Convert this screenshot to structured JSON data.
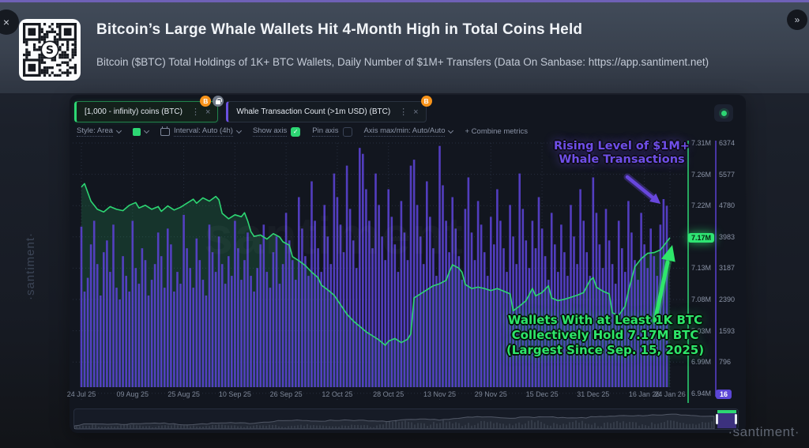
{
  "window": {
    "close_icon": "×",
    "expand_icon": "»"
  },
  "icons": {
    "kebab": "⋮",
    "close": "×",
    "check": "✓",
    "btc": "B"
  },
  "header": {
    "title": "Bitcoin’s Large Whale Wallets Hit 4-Month High in Total Coins Held",
    "subtitle": "Bitcoin ($BTC) Total Holdings of 1K+ BTC Wallets, Daily Number of $1M+ Transfers (Data On Sanbase: https://app.santiment.net)"
  },
  "toolbar": {
    "metric_tabs": [
      {
        "label": "[1,000 - infinity) coins (BTC)",
        "accent": "#2dd673",
        "badges": [
          "btc",
          "lock"
        ]
      },
      {
        "label": "Whale Transaction Count (>1m USD) (BTC)",
        "accent": "#6a50e0",
        "badges": [
          "btc"
        ]
      }
    ],
    "controls": {
      "style_label": "Style: Area",
      "interval_label": "Interval: Auto (4h)",
      "show_axis_label": "Show axis",
      "show_axis_checked": true,
      "pin_axis_label": "Pin axis",
      "pin_axis_checked": false,
      "axis_maxmin_label": "Axis max/min: Auto/Auto",
      "combine_metrics_label": "+ Combine metrics"
    }
  },
  "annotations": {
    "purple": {
      "color": "#6f4fe8",
      "lines": [
        "Rising Level of $1M+",
        "Whale Transactions"
      ]
    },
    "green": {
      "color": "#2ee76a",
      "lines": [
        "Wallets With at Least 1K BTC",
        "Collectively Hold 7.17M BTC",
        "(Largest Since Sep. 15, 2025)"
      ]
    }
  },
  "watermarks": {
    "left": "·santiment·",
    "center": "santiment",
    "bottom_right": "·santiment·"
  },
  "chart_data": {
    "type": "mixed",
    "grid": true,
    "legend_position": "top",
    "x_axis": {
      "days_total": 184,
      "labels": [
        {
          "label": "24 Jul 25",
          "day": 0
        },
        {
          "label": "09 Aug 25",
          "day": 16
        },
        {
          "label": "25 Aug 25",
          "day": 32
        },
        {
          "label": "10 Sep 25",
          "day": 48
        },
        {
          "label": "26 Sep 25",
          "day": 64
        },
        {
          "label": "12 Oct 25",
          "day": 80
        },
        {
          "label": "28 Oct 25",
          "day": 96
        },
        {
          "label": "13 Nov 25",
          "day": 112
        },
        {
          "label": "29 Nov 25",
          "day": 128
        },
        {
          "label": "15 Dec 25",
          "day": 144
        },
        {
          "label": "31 Dec 25",
          "day": 160
        },
        {
          "label": "16 Jan 26",
          "day": 176
        },
        {
          "label": "24 Jan 26",
          "day": 184
        }
      ]
    },
    "series": [
      {
        "name": "[1,000 - infinity) coins (BTC)",
        "type": "area",
        "unit": "M BTC",
        "color": "#2dd673",
        "fill": "rgba(45,214,115,0.16)",
        "axis_range": [
          6.94,
          7.31
        ],
        "axis_ticks": [
          "7.31M",
          "7.26M",
          "7.22M",
          "7.17M",
          "7.13M",
          "7.08M",
          "7.03M",
          "6.99M",
          "6.94M"
        ],
        "highlight_value": "7.17M",
        "highlight_tick_index": 3,
        "points": [
          [
            0,
            7.245
          ],
          [
            1,
            7.25
          ],
          [
            3,
            7.224
          ],
          [
            5,
            7.212
          ],
          [
            7,
            7.208
          ],
          [
            9,
            7.216
          ],
          [
            11,
            7.212
          ],
          [
            13,
            7.21
          ],
          [
            15,
            7.218
          ],
          [
            17,
            7.222
          ],
          [
            18,
            7.214
          ],
          [
            20,
            7.218
          ],
          [
            22,
            7.212
          ],
          [
            24,
            7.216
          ],
          [
            25,
            7.209
          ],
          [
            27,
            7.217
          ],
          [
            29,
            7.211
          ],
          [
            31,
            7.215
          ],
          [
            33,
            7.221
          ],
          [
            35,
            7.227
          ],
          [
            36,
            7.221
          ],
          [
            38,
            7.229
          ],
          [
            40,
            7.224
          ],
          [
            42,
            7.231
          ],
          [
            43,
            7.226
          ],
          [
            44,
            7.206
          ],
          [
            46,
            7.198
          ],
          [
            48,
            7.204
          ],
          [
            50,
            7.201
          ],
          [
            51,
            7.207
          ],
          [
            52,
            7.195
          ],
          [
            53,
            7.179
          ],
          [
            54,
            7.172
          ],
          [
            56,
            7.174
          ],
          [
            58,
            7.168
          ],
          [
            60,
            7.176
          ],
          [
            62,
            7.171
          ],
          [
            63,
            7.164
          ],
          [
            65,
            7.159
          ],
          [
            66,
            7.142
          ],
          [
            68,
            7.136
          ],
          [
            70,
            7.129
          ],
          [
            72,
            7.119
          ],
          [
            74,
            7.111
          ],
          [
            75,
            7.1
          ],
          [
            77,
            7.093
          ],
          [
            79,
            7.085
          ],
          [
            81,
            7.071
          ],
          [
            83,
            7.057
          ],
          [
            85,
            7.047
          ],
          [
            87,
            7.039
          ],
          [
            89,
            7.031
          ],
          [
            91,
            7.025
          ],
          [
            93,
            7.019
          ],
          [
            95,
            7.011
          ],
          [
            96,
            7.017
          ],
          [
            98,
            7.021
          ],
          [
            100,
            7.015
          ],
          [
            102,
            7.02
          ],
          [
            103,
            7.028
          ],
          [
            104,
            7.081
          ],
          [
            106,
            7.087
          ],
          [
            108,
            7.093
          ],
          [
            110,
            7.099
          ],
          [
            112,
            7.102
          ],
          [
            114,
            7.107
          ],
          [
            115,
            7.119
          ],
          [
            116,
            7.13
          ],
          [
            118,
            7.125
          ],
          [
            119,
            7.119
          ],
          [
            120,
            7.101
          ],
          [
            122,
            7.095
          ],
          [
            124,
            7.097
          ],
          [
            126,
            7.095
          ],
          [
            128,
            7.092
          ],
          [
            130,
            7.095
          ],
          [
            132,
            7.091
          ],
          [
            134,
            7.087
          ],
          [
            135,
            7.062
          ],
          [
            137,
            7.069
          ],
          [
            139,
            7.077
          ],
          [
            141,
            7.095
          ],
          [
            142,
            7.084
          ],
          [
            144,
            7.089
          ],
          [
            146,
            7.099
          ],
          [
            147,
            7.081
          ],
          [
            149,
            7.077
          ],
          [
            151,
            7.079
          ],
          [
            153,
            7.082
          ],
          [
            155,
            7.085
          ],
          [
            157,
            7.089
          ],
          [
            159,
            7.107
          ],
          [
            160,
            7.111
          ],
          [
            161,
            7.097
          ],
          [
            163,
            7.091
          ],
          [
            165,
            7.087
          ],
          [
            166,
            7.059
          ],
          [
            168,
            7.055
          ],
          [
            170,
            7.069
          ],
          [
            171,
            7.091
          ],
          [
            173,
            7.127
          ],
          [
            175,
            7.139
          ],
          [
            177,
            7.147
          ],
          [
            179,
            7.148
          ],
          [
            181,
            7.152
          ],
          [
            183,
            7.164
          ],
          [
            184,
            7.17
          ]
        ]
      },
      {
        "name": "Whale Transaction Count (>1m USD) (BTC)",
        "type": "bar",
        "unit": "transactions",
        "color": "#5a41d0",
        "axis_range": [
          16,
          6374
        ],
        "axis_ticks": [
          "6374",
          "5577",
          "4780",
          "3983",
          "3187",
          "2390",
          "1593",
          "796",
          "16"
        ],
        "highlight_value": "16",
        "highlight_tick_index": 8,
        "values": [
          4250,
          2600,
          2950,
          3800,
          4400,
          3300,
          2500,
          3600,
          3900,
          3100,
          4300,
          2700,
          2400,
          3500,
          3000,
          2600,
          4400,
          3200,
          2800,
          3700,
          3400,
          2500,
          2900,
          3300,
          4100,
          3500,
          2700,
          4200,
          3800,
          2600,
          3100,
          2800,
          4550,
          3700,
          3200,
          2700,
          3950,
          3400,
          2900,
          2500,
          4300,
          3600,
          3100,
          4000,
          3300,
          2800,
          3500,
          3000,
          4400,
          3700,
          2900,
          3400,
          4100,
          3000,
          2600,
          3200,
          3800,
          4300,
          3100,
          2700,
          3600,
          4000,
          2800,
          3300,
          4600,
          3900,
          3400,
          2900,
          5000,
          4200,
          3500,
          3000,
          5400,
          4400,
          3700,
          3100,
          4800,
          4000,
          3300,
          5600,
          5000,
          4300,
          3600,
          5800,
          4700,
          3900,
          3200,
          6250,
          6100,
          5200,
          4400,
          3700,
          5600,
          4800,
          4000,
          3400,
          5200,
          4500,
          3800,
          3100,
          4900,
          4100,
          3400,
          5800,
          5950,
          4800,
          4000,
          3300,
          5400,
          4500,
          3700,
          3000,
          6300,
          5300,
          4400,
          3600,
          5000,
          4200,
          3500,
          2900,
          4700,
          5500,
          4100,
          3400,
          4900,
          4300,
          3600,
          3000,
          4500,
          3800,
          5200,
          4400,
          3700,
          3100,
          4800,
          4000,
          3300,
          5600,
          4700,
          3900,
          3200,
          4400,
          3700,
          5000,
          4200,
          3500,
          2900,
          4600,
          3800,
          3100,
          4300,
          3600,
          3000,
          4800,
          4000,
          3300,
          5200,
          4400,
          3600,
          3000,
          5500,
          4600,
          3800,
          3200,
          4700,
          3900,
          3300,
          2800,
          4400,
          3700,
          3100,
          4900,
          4100,
          3400,
          2900,
          4600,
          3800,
          3200,
          4200,
          3500,
          3000,
          4300,
          4950,
          4780
        ]
      }
    ]
  }
}
